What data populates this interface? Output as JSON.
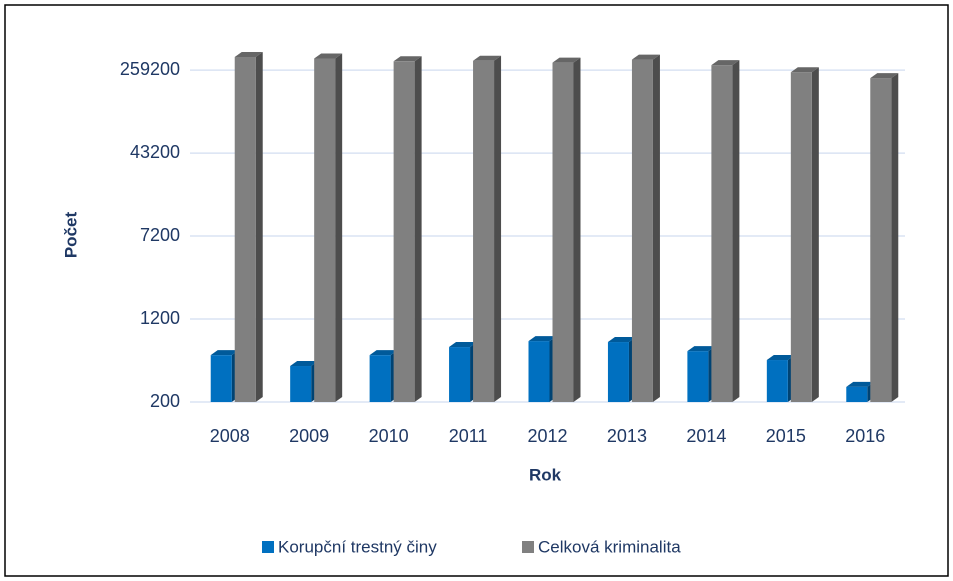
{
  "chart_data": {
    "type": "bar",
    "x_label": "Rok",
    "y_label": "Počet",
    "categories": [
      "2008",
      "2009",
      "2010",
      "2011",
      "2012",
      "2013",
      "2014",
      "2015",
      "2016"
    ],
    "series": [
      {
        "name": "Korupční trestný činy",
        "color": "#0070c0",
        "values": [
          550,
          435,
          550,
          655,
          745,
          730,
          600,
          495,
          277
        ]
      },
      {
        "name": "Celková kriminalita",
        "color": "#808080",
        "values": [
          343799,
          332829,
          313387,
          317177,
          304528,
          325366,
          288660,
          247628,
          218162
        ]
      }
    ],
    "log_scale": true,
    "ylim": [
      200,
      400000
    ],
    "yticks": [
      200,
      1200,
      7200,
      43200,
      259200
    ],
    "grid": true,
    "legend": "bottom"
  }
}
